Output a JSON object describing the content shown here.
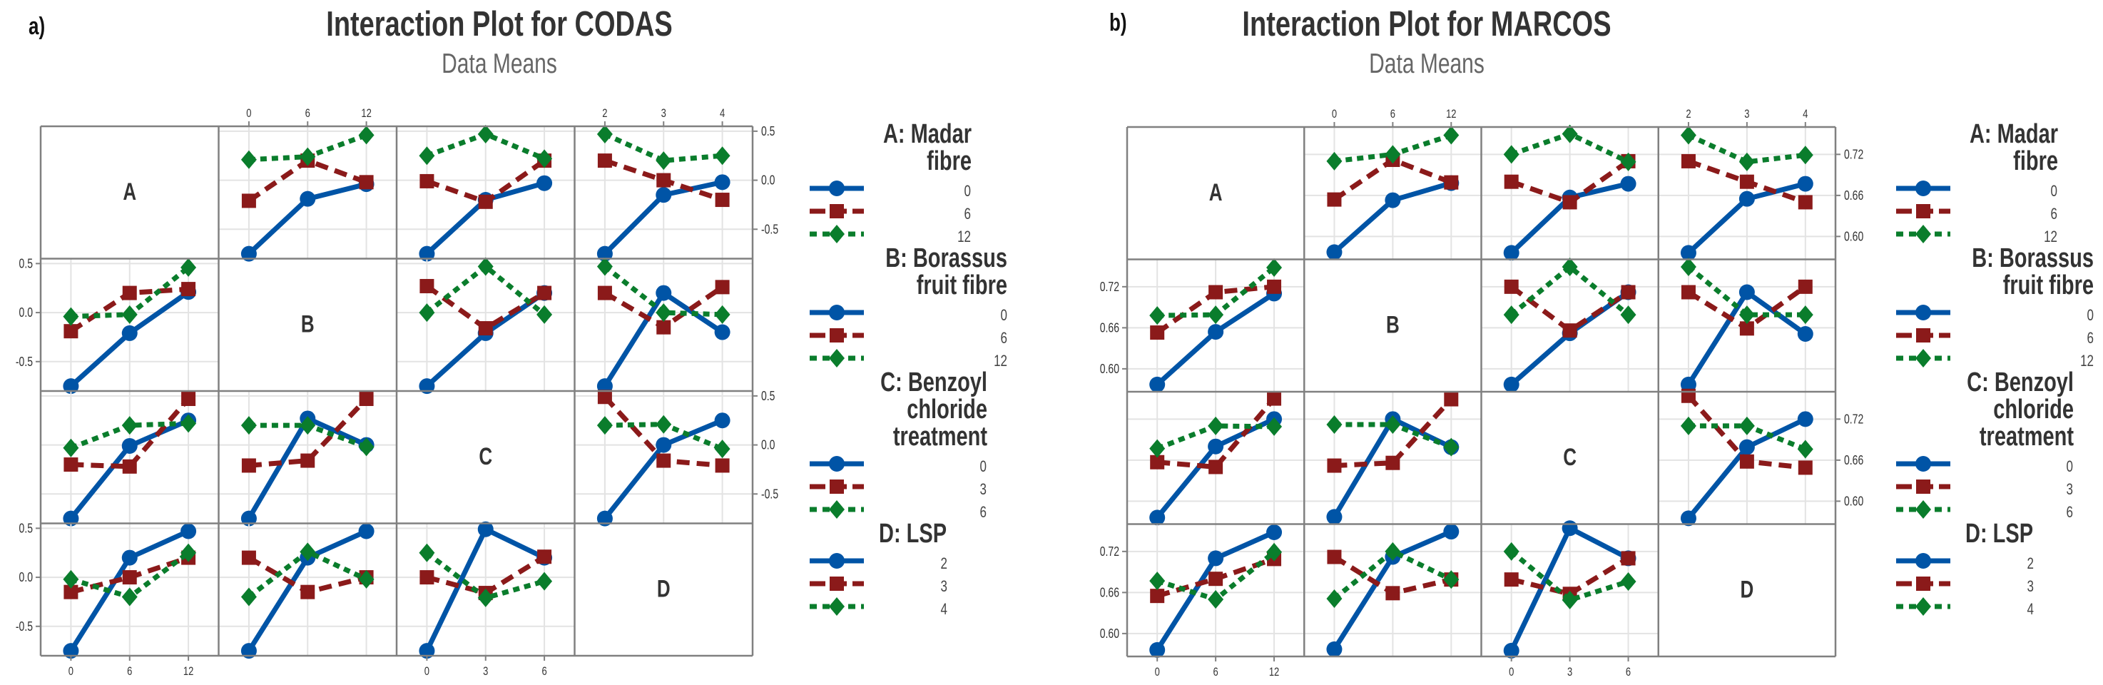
{
  "colors": {
    "series": [
      "#0054a6",
      "#8b1a1a",
      "#0a7d2c"
    ],
    "frame": "#808080",
    "grid": "#e3e3e3",
    "text": "#333333",
    "subtitle": "#666666"
  },
  "chart_data": [
    {
      "type": "line",
      "panel_label": "a)",
      "title": "Interaction Plot for CODAS",
      "subtitle": "Data Means",
      "ylim": [
        -0.8,
        0.55
      ],
      "y_ticks": [
        -0.5,
        0.0,
        0.5
      ],
      "y_tick_labels": [
        "-0.5",
        "0.0",
        "0.5"
      ],
      "grid": true,
      "legend_position": "right",
      "series_styles": [
        "solid-circle",
        "dashed-square",
        "dotted-diamond"
      ],
      "factors": [
        {
          "key": "A",
          "legend_lines": [
            "A: Madar",
            "fibre"
          ],
          "levels": [
            "0",
            "6",
            "12"
          ]
        },
        {
          "key": "B",
          "legend_lines": [
            "B: Borassus",
            "fruit fibre"
          ],
          "levels": [
            "0",
            "6",
            "12"
          ]
        },
        {
          "key": "C",
          "legend_lines": [
            "C: Benzoyl",
            "chloride",
            "treatment"
          ],
          "levels": [
            "0",
            "3",
            "6"
          ]
        },
        {
          "key": "D",
          "legend_lines": [
            "D: LSP"
          ],
          "levels": [
            "2",
            "3",
            "4"
          ]
        }
      ],
      "interactions": {
        "AB": [
          [
            -0.75,
            -0.19,
            -0.04
          ],
          [
            -0.21,
            0.2,
            -0.02
          ],
          [
            0.21,
            0.24,
            0.46
          ]
        ],
        "AC": [
          [
            -0.75,
            -0.2,
            -0.03
          ],
          [
            -0.01,
            -0.22,
            0.2
          ],
          [
            0.25,
            0.47,
            0.22
          ]
        ],
        "AD": [
          [
            -0.75,
            -0.15,
            -0.02
          ],
          [
            0.2,
            0.0,
            -0.2
          ],
          [
            0.47,
            0.2,
            0.25
          ]
        ],
        "BC": [
          [
            -0.75,
            -0.21,
            0.2
          ],
          [
            0.27,
            -0.16,
            0.2
          ],
          [
            0.0,
            0.47,
            -0.02
          ]
        ],
        "BD": [
          [
            -0.75,
            0.2,
            -0.2
          ],
          [
            0.2,
            -0.15,
            0.26
          ],
          [
            0.47,
            0.0,
            -0.02
          ]
        ],
        "CD": [
          [
            -0.75,
            0.0,
            0.25
          ],
          [
            0.49,
            -0.16,
            -0.21
          ],
          [
            0.2,
            0.21,
            -0.04
          ]
        ]
      }
    },
    {
      "type": "line",
      "panel_label": "b)",
      "title": "Interaction Plot for MARCOS",
      "subtitle": "Data Means",
      "ylim": [
        0.5665,
        0.76
      ],
      "y_ticks": [
        0.6,
        0.66,
        0.72
      ],
      "y_tick_labels": [
        "0.60",
        "0.66",
        "0.72"
      ],
      "grid": true,
      "legend_position": "right",
      "series_styles": [
        "solid-circle",
        "dashed-square",
        "dotted-diamond"
      ],
      "factors": [
        {
          "key": "A",
          "legend_lines": [
            "A: Madar",
            "fibre"
          ],
          "levels": [
            "0",
            "6",
            "12"
          ]
        },
        {
          "key": "B",
          "legend_lines": [
            "B: Borassus",
            "fruit fibre"
          ],
          "levels": [
            "0",
            "6",
            "12"
          ]
        },
        {
          "key": "C",
          "legend_lines": [
            "C: Benzoyl",
            "chloride",
            "treatment"
          ],
          "levels": [
            "0",
            "3",
            "6"
          ]
        },
        {
          "key": "D",
          "legend_lines": [
            "D: LSP"
          ],
          "levels": [
            "2",
            "3",
            "4"
          ]
        }
      ],
      "interactions": {
        "AB": [
          [
            0.577,
            0.653,
            0.678
          ],
          [
            0.654,
            0.712,
            0.679
          ],
          [
            0.71,
            0.72,
            0.748
          ]
        ],
        "AC": [
          [
            0.576,
            0.657,
            0.677
          ],
          [
            0.68,
            0.65,
            0.71
          ],
          [
            0.72,
            0.75,
            0.709
          ]
        ],
        "AD": [
          [
            0.576,
            0.655,
            0.677
          ],
          [
            0.71,
            0.68,
            0.65
          ],
          [
            0.748,
            0.709,
            0.719
          ]
        ],
        "BC": [
          [
            0.577,
            0.652,
            0.712
          ],
          [
            0.72,
            0.656,
            0.712
          ],
          [
            0.679,
            0.749,
            0.679
          ]
        ],
        "BD": [
          [
            0.577,
            0.712,
            0.651
          ],
          [
            0.712,
            0.659,
            0.72
          ],
          [
            0.749,
            0.679,
            0.679
          ]
        ],
        "CD": [
          [
            0.575,
            0.679,
            0.72
          ],
          [
            0.754,
            0.658,
            0.649
          ],
          [
            0.71,
            0.71,
            0.676
          ]
        ]
      }
    }
  ]
}
